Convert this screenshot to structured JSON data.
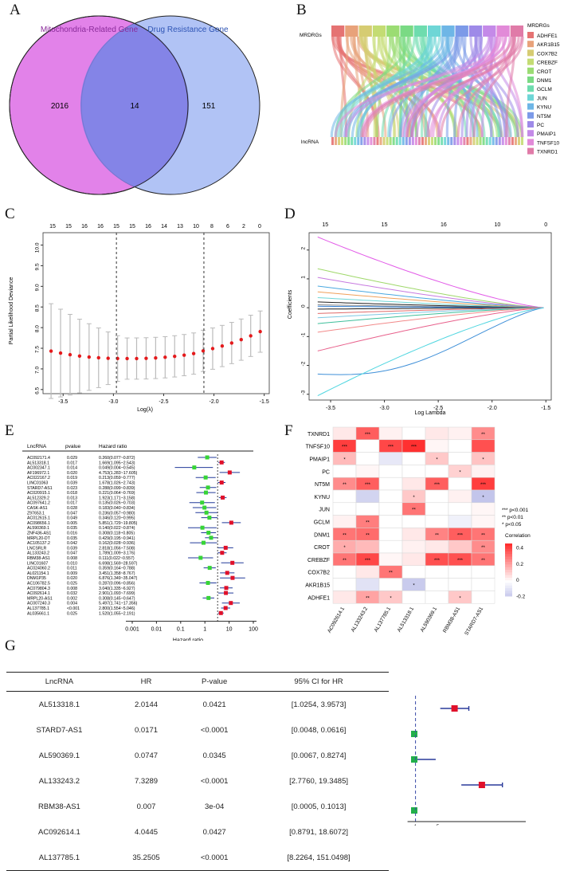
{
  "panels": {
    "a": "A",
    "b": "B",
    "c": "C",
    "d": "D",
    "e": "E",
    "f": "F",
    "g": "G"
  },
  "panelA": {
    "set1": "Mitochondria-Related Gene",
    "set2": "Drug Resistance Gene",
    "only1": "2016",
    "both": "14",
    "only2": "151",
    "color1": "#e07be8",
    "color2": "#a3b8f3"
  },
  "panelB": {
    "top_label": "MRDRGs",
    "bottom_label": "lncRNA",
    "legend_title": "MRDRGs",
    "genes": [
      "ADHFE1",
      "AKR1B15",
      "COX7B2",
      "CREBZF",
      "CROT",
      "DNM1",
      "GCLM",
      "JUN",
      "KYNU",
      "NT5M",
      "PC",
      "PMAIP1",
      "TNFSF10",
      "TXNRD1"
    ],
    "colors": [
      "#e57373",
      "#e8a27a",
      "#d6cc72",
      "#c4dc73",
      "#9bdc73",
      "#7ada84",
      "#6edcae",
      "#6ed6d6",
      "#6eb6e6",
      "#7c9ae8",
      "#9e8ae8",
      "#c48ae8",
      "#e28ad8",
      "#e07ba8"
    ]
  },
  "panelC": {
    "ylabel": "Partial Likelihood Deviance",
    "xlabel": "Log(λ)",
    "top_ticks": [
      "15",
      "15",
      "16",
      "16",
      "15",
      "15",
      "16",
      "14",
      "13",
      "10",
      "8",
      "6",
      "2",
      "0"
    ],
    "x_ticks": [
      "-3.5",
      "-3.0",
      "-2.5",
      "-2.0",
      "-1.5"
    ],
    "y_ticks": [
      "6.5",
      "7.0",
      "7.5",
      "8.0",
      "8.5",
      "9.0",
      "9.5",
      "10.0"
    ]
  },
  "panelD": {
    "ylabel": "Coefficients",
    "xlabel": "Log Lambda",
    "top_ticks": [
      "15",
      "15",
      "16",
      "10",
      "0"
    ],
    "x_ticks": [
      "-3.5",
      "-3.0",
      "-2.5",
      "-2.0",
      "-1.5"
    ],
    "y_ticks": [
      "-3",
      "-2",
      "-1",
      "0",
      "1",
      "2"
    ]
  },
  "panelE": {
    "col_lnc": "LncRNA",
    "col_p": "pvalue",
    "col_hr": "Hazard ratio",
    "xlabel": "Hazard ratio",
    "x_ticks": [
      "0.001",
      "0.01",
      "0.1",
      "1",
      "10",
      "100"
    ],
    "rows": [
      {
        "name": "AC092171.4",
        "p": "0.029",
        "hr": "0.260(0.077~0.872)"
      },
      {
        "name": "AL513318.1",
        "p": "0.017",
        "hr": "1.669(1.095~2.543)"
      },
      {
        "name": "AC002347.1",
        "p": "0.014",
        "hr": "0.049(0.004~0.545)"
      },
      {
        "name": "AF196972.1",
        "p": "0.020",
        "hr": "4.753(1.283~17.605)"
      },
      {
        "name": "AC022167.2",
        "p": "0.019",
        "hr": "0.213(0.059~0.777)"
      },
      {
        "name": "LINC01063",
        "p": "0.039",
        "hr": "1.678(1.026~2.743)"
      },
      {
        "name": "STARD7-AS1",
        "p": "0.023",
        "hr": "0.288(0.099~0.839)"
      },
      {
        "name": "AC020915.1",
        "p": "0.018",
        "hr": "0.221(0.064~0.769)"
      },
      {
        "name": "AL512329.2",
        "p": "0.013",
        "hr": "1.923(1.171~3.158)"
      },
      {
        "name": "AC097641.2",
        "p": "0.017",
        "hr": "0.135(0.026~0.703)"
      },
      {
        "name": "CASK-AS1",
        "p": "0.028",
        "hr": "0.183(0.040~0.834)"
      },
      {
        "name": "Z97653.1",
        "p": "0.047",
        "hr": "0.236(0.057~0.980)"
      },
      {
        "name": "AC012615.1",
        "p": "0.049",
        "hr": "0.346(0.120~0.995)"
      },
      {
        "name": "AC098656.1",
        "p": "0.005",
        "hr": "5.851(1.729~19.805)"
      },
      {
        "name": "AL590369.1",
        "p": "0.035",
        "hr": "0.140(0.022~0.874)"
      },
      {
        "name": "ZNF436-AS1",
        "p": "0.016",
        "hr": "0.308(0.118~0.805)"
      },
      {
        "name": "MRPL20-DT",
        "p": "0.035",
        "hr": "0.429(0.195~0.941)"
      },
      {
        "name": "AC105137.2",
        "p": "0.042",
        "hr": "0.162(0.028~0.936)"
      },
      {
        "name": "LNCSRLR",
        "p": "0.039",
        "hr": "2.818(1.056~7.508)"
      },
      {
        "name": "AL133243.2",
        "p": "0.047",
        "hr": "1.789(1.009~3.176)"
      },
      {
        "name": "RBM38-AS1",
        "p": "0.008",
        "hr": "0.111(0.022~0.557)"
      },
      {
        "name": "LINC01607",
        "p": "0.010",
        "hr": "6.698(1.569~28.597)"
      },
      {
        "name": "AC024060.2",
        "p": "0.011",
        "hr": "0.359(0.164~0.788)"
      },
      {
        "name": "AL021154.1",
        "p": "0.009",
        "hr": "3.451(1.358~8.767)"
      },
      {
        "name": "DNM1P35",
        "p": "0.020",
        "hr": "6.876(1.349~35.047)"
      },
      {
        "name": "AC106782.5",
        "p": "0.025",
        "hr": "0.287(0.096~0.856)"
      },
      {
        "name": "AC079804.3",
        "p": "0.008",
        "hr": "3.040(1.335~6.927)"
      },
      {
        "name": "AC092614.1",
        "p": "0.032",
        "hr": "2.901(1.093~7.699)"
      },
      {
        "name": "MRPL20-AS1",
        "p": "0.002",
        "hr": "0.308(0.145~0.647)"
      },
      {
        "name": "AC007240.3",
        "p": "0.004",
        "hr": "5.497(1.741~17.356)"
      },
      {
        "name": "AL137785.1",
        "p": "<0.001",
        "hr": "2.800(1.554~5.046)"
      },
      {
        "name": "AL035661.1",
        "p": "0.025",
        "hr": "1.520(1.055~2.191)"
      }
    ]
  },
  "panelF": {
    "rows": [
      "TXNRD1",
      "TNFSF10",
      "PMAIP1",
      "PC",
      "NT5M",
      "KYNU",
      "JUN",
      "GCLM",
      "DNM1",
      "CROT",
      "CREBZF",
      "COX7B2",
      "AKR1B15",
      "ADHFE1"
    ],
    "cols": [
      "AC092614.1",
      "AL133243.2",
      "AL137785.1",
      "AL513318.1",
      "AL590369.1",
      "RBM38-AS1",
      "STARD7-AS1"
    ],
    "sig_legend": [
      "*** p<0.001",
      "**  p<0.01",
      "*  p<0.05"
    ],
    "legend_title": "Correlation",
    "scale_ticks": [
      "0.4",
      "0.2",
      "0",
      "-0.2"
    ],
    "values": [
      [
        0.05,
        0.35,
        0.03,
        0.0,
        0.05,
        0.03,
        0.25
      ],
      [
        0.42,
        0.0,
        0.4,
        0.45,
        0.02,
        0.0,
        0.38
      ],
      [
        0.15,
        0.0,
        -0.08,
        0.0,
        0.12,
        0.0,
        0.13
      ],
      [
        0.0,
        0.02,
        0.0,
        0.0,
        0.0,
        0.1,
        0.03
      ],
      [
        0.25,
        0.35,
        0.0,
        0.05,
        0.35,
        0.0,
        0.42
      ],
      [
        0.0,
        -0.15,
        0.0,
        0.12,
        0.0,
        0.03,
        -0.2
      ],
      [
        0.0,
        0.0,
        0.0,
        0.3,
        0.0,
        0.0,
        0.02
      ],
      [
        0.03,
        0.28,
        0.0,
        0.0,
        0.0,
        -0.05,
        0.02
      ],
      [
        0.3,
        0.32,
        0.0,
        0.05,
        0.27,
        0.35,
        0.3
      ],
      [
        0.18,
        0.15,
        0.0,
        0.03,
        0.05,
        0.12,
        0.25
      ],
      [
        0.3,
        0.4,
        0.02,
        0.05,
        0.38,
        0.38,
        0.3
      ],
      [
        0.0,
        0.05,
        0.3,
        0.0,
        0.0,
        0.0,
        0.0
      ],
      [
        0.0,
        -0.1,
        0.0,
        -0.18,
        0.0,
        0.0,
        0.0
      ],
      [
        0.05,
        0.2,
        0.12,
        0.0,
        0.0,
        0.12,
        0.0
      ]
    ],
    "stars": [
      [
        "",
        "***",
        "",
        "",
        "",
        "",
        "**"
      ],
      [
        "***",
        "",
        "***",
        "***",
        "",
        "",
        ""
      ],
      [
        "*",
        "",
        "",
        "",
        "*",
        "",
        "*"
      ],
      [
        "",
        "",
        "",
        "",
        "",
        "*",
        ""
      ],
      [
        "**",
        "***",
        "",
        "",
        "***",
        "",
        "***"
      ],
      [
        "",
        "",
        "",
        "*",
        "",
        "",
        "*"
      ],
      [
        "",
        "",
        "",
        "**",
        "",
        "",
        ""
      ],
      [
        "",
        "**",
        "",
        "",
        "",
        "",
        ""
      ],
      [
        "**",
        "**",
        "",
        "",
        "**",
        "***",
        "**"
      ],
      [
        "*",
        "",
        "",
        "",
        "",
        "",
        "**"
      ],
      [
        "**",
        "***",
        "",
        "",
        "***",
        "***",
        "**"
      ],
      [
        "",
        "",
        "**",
        "",
        "",
        "",
        ""
      ],
      [
        "",
        "",
        "",
        "*",
        "",
        "",
        ""
      ],
      [
        "",
        "**",
        "*",
        "",
        "",
        "*",
        ""
      ]
    ]
  },
  "panelG": {
    "headers": [
      "LncRNA",
      "HR",
      "P-value",
      "95% CI for HR"
    ],
    "x_ticks": [
      "1",
      "5"
    ],
    "rows": [
      {
        "name": "AL513318.1",
        "hr": "2.0144",
        "p": "0.0421",
        "ci": "[1.0254, 3.9573]",
        "box": "#e0102a"
      },
      {
        "name": "STARD7-AS1",
        "hr": "0.0171",
        "p": "<0.0001",
        "ci": "[0.0048, 0.0616]",
        "box": "#22b04a"
      },
      {
        "name": "AL590369.1",
        "hr": "0.0747",
        "p": "0.0345",
        "ci": "[0.0067, 0.8274]",
        "box": "#22b04a"
      },
      {
        "name": "AL133243.2",
        "hr": "7.3289",
        "p": "<0.0001",
        "ci": "[2.7760, 19.3485]",
        "box": "#e0102a"
      },
      {
        "name": "RBM38-AS1",
        "hr": "0.007",
        "p": "3e-04",
        "ci": "[0.0005, 0.1013]",
        "box": "#22b04a"
      },
      {
        "name": "AC092614.1",
        "hr": "4.0445",
        "p": "0.0427",
        "ci": "[0.8791, 18.6072]",
        "box": "#e0102a"
      },
      {
        "name": "AL137785.1",
        "hr": "35.2505",
        "p": "<0.0001",
        "ci": "[8.2264, 151.0498]",
        "box": "#e0102a"
      }
    ]
  }
}
